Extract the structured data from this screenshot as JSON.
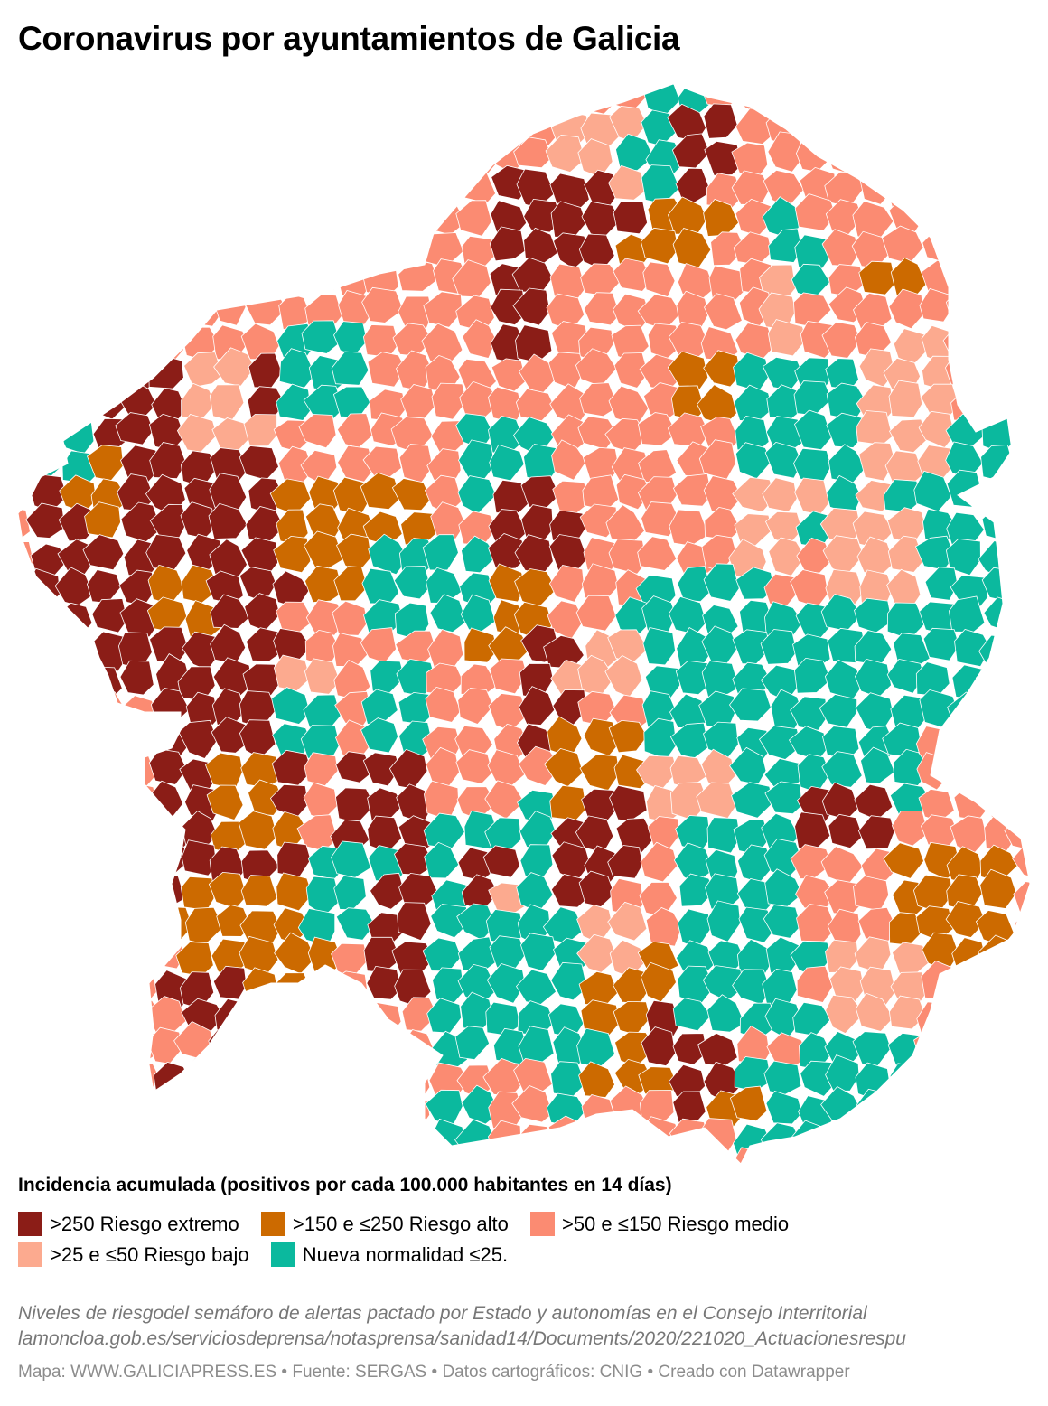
{
  "title": "Coronavirus por ayuntamientos de Galicia",
  "legend": {
    "title": "Incidencia acumulada (positivos por cada 100.000 habitantes en 14 días)",
    "items": [
      {
        "label": ">250 Riesgo extremo",
        "color": "#8b1d17"
      },
      {
        "label": ">150 e ≤250 Riesgo alto",
        "color": "#cc6a00"
      },
      {
        "label": ">50 e ≤150 Riesgo medio",
        "color": "#fb8b72"
      },
      {
        "label": ">25 e ≤50 Riesgo bajo",
        "color": "#fcaa8f"
      },
      {
        "label": "Nueva normalidad ≤25.",
        "color": "#0bb99e"
      }
    ]
  },
  "notes": {
    "line1": "Niveles de riesgodel semáforo de alertas pactado por Estado y autonomías en el Consejo Interritorial",
    "line2": "lamoncloa.gob.es/serviciosdeprensa/notasprensa/sanidad14/Documents/2020/221020_Actuacionesrespu"
  },
  "footer": "Mapa: WWW.GALICIAPRESS.ES • Fuente: SERGAS • Datos cartográficos: CNIG • Creado con Datawrapper",
  "map": {
    "region": "Galicia",
    "category_order": [
      "extremo",
      "alto",
      "medio",
      "bajo",
      "normalidad"
    ]
  }
}
